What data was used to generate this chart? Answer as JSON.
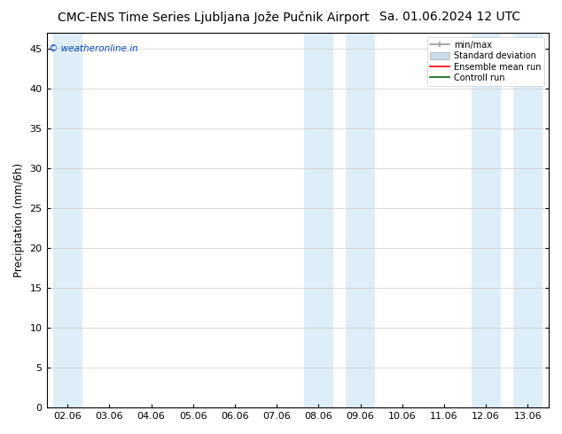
{
  "title": "CMC-ENS Time Series Ljubljana Jože Pučnik Airport",
  "title_right": "Sa. 01.06.2024 12 UTC",
  "ylabel": "Precipitation (mm/6h)",
  "watermark": "© weatheronline.in",
  "ylim": [
    0,
    47
  ],
  "yticks": [
    0,
    5,
    10,
    15,
    20,
    25,
    30,
    35,
    40,
    45
  ],
  "x_labels": [
    "02.06",
    "03.06",
    "04.06",
    "05.06",
    "06.06",
    "07.06",
    "08.06",
    "09.06",
    "10.06",
    "11.06",
    "12.06",
    "13.06"
  ],
  "bg_color": "#ffffff",
  "shade_color": "#ddeef8",
  "legend_entries": [
    "min/max",
    "Standard deviation",
    "Ensemble mean run",
    "Controll run"
  ],
  "legend_colors": [
    "#999999",
    "#c8dcea",
    "#ff0000",
    "#006600"
  ],
  "title_fontsize": 10,
  "axis_fontsize": 8.5,
  "tick_fontsize": 8
}
